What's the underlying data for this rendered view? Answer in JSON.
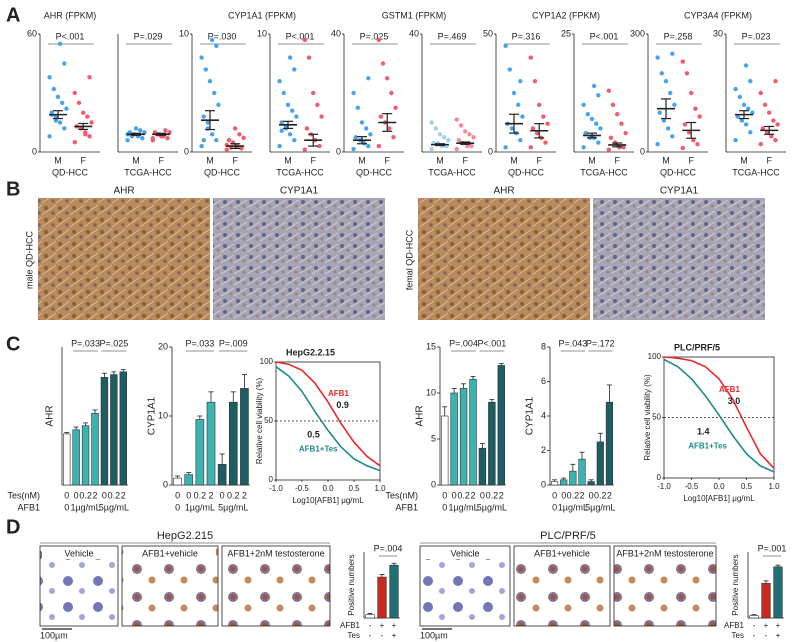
{
  "panels": [
    "A",
    "B",
    "C",
    "D"
  ],
  "panel_b": {
    "labels": [
      "AHR",
      "CYP1A1",
      "AHR",
      "CYP1A1"
    ],
    "sides": [
      "male QD-HCC",
      "femal QD-HCC"
    ]
  },
  "panel_d": [
    {
      "title": "HepG2.215",
      "images": [
        "Vehicle",
        "AFB1+vehicle",
        "AFB1+2nM testosterone"
      ],
      "scale": "100µm"
    },
    {
      "title": "PLC/PRF/5",
      "images": [
        "Vehicle",
        "AFB1+vehicle",
        "AFB1+2nM testosterone"
      ],
      "scale": "100µm"
    }
  ],
  "chart_data": [
    {
      "type": "dot",
      "title": "AHR (FPKM)",
      "group": "QD-HCC",
      "categories": [
        "M",
        "F"
      ],
      "pvalue": "P<.001",
      "ylim": [
        0,
        60
      ],
      "yticks": [
        0,
        60
      ],
      "colors": [
        "#4aa3f0",
        "#f25d6e"
      ],
      "points": [
        [
          8,
          12,
          15,
          18,
          20,
          22,
          25,
          28,
          32,
          38,
          45,
          55,
          16,
          19
        ],
        [
          5,
          8,
          10,
          12,
          13,
          15,
          18,
          20,
          25,
          30,
          38,
          9
        ]
      ],
      "mean": [
        19,
        13
      ],
      "sem": [
        2,
        1.5
      ]
    },
    {
      "type": "dot",
      "group": "TCGA-HCC",
      "categories": [
        "M",
        "F"
      ],
      "pvalue": "P=.029",
      "ylim": [
        0,
        60
      ],
      "colors": [
        "#4aa3f0",
        "#f25d6e"
      ],
      "points": [
        [
          6,
          7,
          8,
          9,
          10,
          10,
          11,
          12,
          8,
          9
        ],
        [
          6,
          7,
          8,
          9,
          10,
          10,
          11,
          8,
          9,
          7
        ]
      ],
      "mean": [
        9,
        9
      ],
      "sem": [
        0.5,
        0.5
      ]
    },
    {
      "type": "dot",
      "title": "CYP1A1 (FPKM)",
      "group": "QD-HCC",
      "categories": [
        "M",
        "F"
      ],
      "pvalue": "P=.030",
      "ylim": [
        0,
        10
      ],
      "yticks": [
        0,
        10
      ],
      "colors": [
        "#4aa3f0",
        "#f25d6e"
      ],
      "points": [
        [
          0.5,
          1,
          1.5,
          2,
          3,
          4,
          5,
          6,
          7,
          8,
          9,
          9.5,
          2.5,
          1
        ],
        [
          0.2,
          0.3,
          0.5,
          0.8,
          1,
          1.2,
          1.5,
          2,
          0.4,
          0.6
        ]
      ],
      "mean": [
        2.7,
        0.5
      ],
      "sem": [
        0.8,
        0.2
      ]
    },
    {
      "type": "dot",
      "group": "TCGA-HCC",
      "categories": [
        "M",
        "F"
      ],
      "pvalue": "P<.001",
      "ylim": [
        0,
        10
      ],
      "yticks": [
        10
      ],
      "colors": [
        "#4aa3f0",
        "#f25d6e"
      ],
      "points": [
        [
          0.5,
          1,
          1.5,
          2,
          2.5,
          3,
          3.5,
          4,
          5,
          6,
          7,
          8,
          2.2,
          1.8
        ],
        [
          0.2,
          0.5,
          1,
          1.5,
          2,
          3,
          4,
          5,
          8,
          9.5
        ]
      ],
      "mean": [
        2.3,
        1
      ],
      "sem": [
        0.3,
        0.5
      ]
    },
    {
      "type": "dot",
      "title": "GSTM1 (FPKM)",
      "group": "QD-HCC",
      "categories": [
        "M",
        "F"
      ],
      "pvalue": "P=.025",
      "ylim": [
        0,
        40
      ],
      "yticks": [
        0,
        40
      ],
      "colors": [
        "#4aa3f0",
        "#f25d6e"
      ],
      "points": [
        [
          1,
          2,
          3,
          4,
          5,
          6,
          8,
          10,
          15,
          20,
          25,
          3
        ],
        [
          2,
          5,
          8,
          10,
          12,
          15,
          20,
          25,
          30,
          38
        ]
      ],
      "mean": [
        4,
        10
      ],
      "sem": [
        1.2,
        3
      ]
    },
    {
      "type": "dot",
      "group": "TCGA-HCC",
      "categories": [
        "M",
        "F"
      ],
      "pvalue": "P=.469",
      "ylim": [
        0,
        40
      ],
      "yticks": [
        40
      ],
      "colors": [
        "#9fd0f5",
        "#f58a97"
      ],
      "points": [
        [
          1,
          2,
          2,
          3,
          3,
          4,
          5,
          6,
          8,
          10
        ],
        [
          1,
          2,
          2,
          3,
          4,
          5,
          6,
          7,
          9,
          11
        ]
      ],
      "mean": [
        2.5,
        3
      ],
      "sem": [
        0.3,
        0.4
      ]
    },
    {
      "type": "dot",
      "title": "CYP1A2 (FPKM)",
      "group": "QD-HCC",
      "categories": [
        "M",
        "F"
      ],
      "pvalue": "P=.316",
      "ylim": [
        0,
        50
      ],
      "yticks": [
        0,
        50
      ],
      "colors": [
        "#4aa3f0",
        "#f25d6e"
      ],
      "points": [
        [
          2,
          5,
          8,
          10,
          12,
          15,
          20,
          25,
          35,
          45,
          30
        ],
        [
          2,
          4,
          6,
          8,
          10,
          12,
          15,
          20,
          30,
          40
        ]
      ],
      "mean": [
        12,
        9
      ],
      "sem": [
        4,
        3
      ]
    },
    {
      "type": "dot",
      "group": "TCGA-HCC",
      "categories": [
        "M",
        "F"
      ],
      "pvalue": "P<.001",
      "ylim": [
        0,
        25
      ],
      "yticks": [
        25
      ],
      "colors": [
        "#4aa3f0",
        "#f25d6e"
      ],
      "points": [
        [
          1,
          2,
          3,
          3,
          4,
          5,
          6,
          7,
          8,
          10,
          12,
          14
        ],
        [
          0.5,
          1,
          1,
          2,
          3,
          4,
          6,
          8,
          10,
          13
        ]
      ],
      "mean": [
        3.5,
        1.5
      ],
      "sem": [
        0.5,
        0.4
      ]
    },
    {
      "type": "dot",
      "title": "CYP3A4 (FPKM)",
      "group": "QD-HCC",
      "categories": [
        "M",
        "F"
      ],
      "pvalue": "P=.258",
      "ylim": [
        0,
        300
      ],
      "yticks": [
        0,
        300
      ],
      "colors": [
        "#4aa3f0",
        "#f25d6e"
      ],
      "points": [
        [
          20,
          40,
          60,
          80,
          100,
          120,
          150,
          180,
          200,
          240,
          250
        ],
        [
          10,
          20,
          30,
          50,
          70,
          90,
          110,
          150,
          200,
          230
        ]
      ],
      "mean": [
        110,
        55
      ],
      "sem": [
        25,
        20
      ]
    },
    {
      "type": "dot",
      "group": "TCGA-HCC",
      "categories": [
        "M",
        "F"
      ],
      "pvalue": "P=.023",
      "ylim": [
        0,
        30
      ],
      "yticks": [
        30
      ],
      "colors": [
        "#4aa3f0",
        "#f25d6e"
      ],
      "points": [
        [
          3,
          5,
          7,
          8,
          9,
          10,
          11,
          12,
          14,
          16,
          18,
          22
        ],
        [
          2,
          3,
          4,
          5,
          6,
          7,
          8,
          10,
          12,
          15,
          18
        ]
      ],
      "mean": [
        9.5,
        5.5
      ],
      "sem": [
        1,
        1
      ]
    },
    {
      "type": "bar",
      "ylabel": "AHR",
      "ylim": [
        0,
        5
      ],
      "row_labels": [
        "Tes(nM)",
        "AFB1"
      ],
      "categories": [
        "0",
        "0",
        "0.2",
        "2",
        "0",
        "0.2",
        "2"
      ],
      "groups": [
        "0",
        "1µg/mL",
        "5µg/mL"
      ],
      "pvalues": [
        "P=.033",
        "P=.025"
      ],
      "values": [
        1.85,
        2,
        2.15,
        2.6,
        3.9,
        4,
        4.1
      ],
      "errors": [
        0.05,
        0.1,
        0.1,
        0.12,
        0.15,
        0.1,
        0.08
      ],
      "colors": [
        "#ffffff",
        "#3bb3b0",
        "#3bb3b0",
        "#3bb3b0",
        "#1d5e63",
        "#1d5e63",
        "#1d5e63"
      ]
    },
    {
      "type": "bar",
      "ylabel": "CYP1A1",
      "ylim": [
        0,
        20
      ],
      "yticks": [
        0,
        10,
        20
      ],
      "categories": [
        "0",
        "0",
        "0.2",
        "2",
        "0",
        "0.2",
        "2"
      ],
      "groups": [
        "0",
        "1µg/mL",
        "5µg/mL"
      ],
      "pvalues": [
        "P=.033",
        "P=.009"
      ],
      "values": [
        1,
        1.5,
        9.5,
        12,
        3,
        12,
        14
      ],
      "errors": [
        0.3,
        0.3,
        0.5,
        1.5,
        1.5,
        1.5,
        2
      ],
      "colors": [
        "#ffffff",
        "#3bb3b0",
        "#3bb3b0",
        "#3bb3b0",
        "#1d5e63",
        "#1d5e63",
        "#1d5e63"
      ]
    },
    {
      "type": "curve",
      "title": "HepG2.2.15",
      "ylabel": "Relative cell viability (%)",
      "xlabel": "Log10[AFB1] μg/mL",
      "xlim": [
        -1,
        1
      ],
      "xticks": [
        {
          "value": -1,
          "label": "-1.0"
        },
        -0.5,
        {
          "value": 0,
          "label": "0.0"
        },
        0.5,
        {
          "value": 1,
          "label": "1.0"
        }
      ],
      "ylim": [
        0,
        100
      ],
      "yticks": [
        0,
        50,
        100
      ],
      "hline": 50,
      "annotations": [
        "0.9",
        "0.5"
      ],
      "x": [
        -1,
        -0.75,
        -0.5,
        -0.25,
        0,
        0.25,
        0.5,
        0.75,
        1
      ],
      "series": [
        {
          "name": "AFB1",
          "color": "#e8282b",
          "values": [
            100,
            98,
            93,
            82,
            66,
            48,
            32,
            20,
            12
          ]
        },
        {
          "name": "AFB1+Tes",
          "color": "#1f8a8a",
          "values": [
            96,
            88,
            75,
            58,
            42,
            28,
            18,
            12,
            8
          ]
        }
      ]
    },
    {
      "type": "bar",
      "ylabel": "AHR",
      "ylim": [
        0,
        15
      ],
      "yticks": [
        0,
        5,
        10,
        15
      ],
      "row_labels": [
        "Tes(nM)",
        "AFB1"
      ],
      "categories": [
        "0",
        "0",
        "0.2",
        "2",
        "0",
        "0.2",
        "2"
      ],
      "groups": [
        "0",
        "1µg/mL",
        "5µg/mL"
      ],
      "pvalues": [
        "P=.004",
        "P<.001"
      ],
      "values": [
        7.5,
        10,
        10.5,
        11.5,
        4,
        9,
        13
      ],
      "errors": [
        1,
        0.5,
        0.5,
        0.3,
        0.5,
        0.3,
        0.2
      ],
      "colors": [
        "#ffffff",
        "#3bb3b0",
        "#3bb3b0",
        "#3bb3b0",
        "#1d5e63",
        "#1d5e63",
        "#1d5e63"
      ]
    },
    {
      "type": "bar",
      "ylabel": "CYP1A1",
      "ylim": [
        0,
        8
      ],
      "yticks": [
        0,
        2,
        4,
        6,
        8
      ],
      "categories": [
        "0",
        "0",
        "0.2",
        "2",
        "0",
        "0.2",
        "2"
      ],
      "groups": [
        "0",
        "1µg/mL",
        "5µg/mL"
      ],
      "pvalues": [
        "P=.043",
        "P=.172"
      ],
      "values": [
        0.2,
        0.3,
        0.8,
        1.5,
        0.2,
        2.5,
        4.8
      ],
      "errors": [
        0.1,
        0.1,
        0.4,
        0.4,
        0.1,
        0.5,
        1
      ],
      "colors": [
        "#ffffff",
        "#3bb3b0",
        "#3bb3b0",
        "#3bb3b0",
        "#1d5e63",
        "#1d5e63",
        "#1d5e63"
      ]
    },
    {
      "type": "curve",
      "title": "PLC/PRF/5",
      "ylabel": "Relative cell viability (%)",
      "xlabel": "Log10[AFB1] μg/mL",
      "xlim": [
        -1,
        1
      ],
      "xticks": [
        {
          "value": -1,
          "label": "-1.0"
        },
        -0.5,
        {
          "value": 0,
          "label": "0.0"
        },
        0.5,
        {
          "value": 1,
          "label": "1.0"
        }
      ],
      "ylim": [
        0,
        100
      ],
      "yticks": [
        0,
        50,
        100
      ],
      "hline": 50,
      "annotations": [
        "3.0",
        "1.4"
      ],
      "x": [
        -1,
        -0.75,
        -0.5,
        -0.25,
        0,
        0.25,
        0.5,
        0.75,
        1
      ],
      "series": [
        {
          "name": "AFB1",
          "color": "#e8282b",
          "values": [
            100,
            99,
            97,
            92,
            82,
            65,
            42,
            20,
            8
          ]
        },
        {
          "name": "AFB1+Tes",
          "color": "#1f8a8a",
          "values": [
            98,
            92,
            82,
            68,
            52,
            35,
            20,
            10,
            5
          ]
        }
      ]
    },
    {
      "type": "bar",
      "ylabel": "Positive numbers",
      "ylim": [
        0,
        10
      ],
      "pvalues": [
        "P=.004"
      ],
      "rows": [
        {
          "label": "AFB1",
          "signs": [
            "-",
            "+",
            "+"
          ]
        },
        {
          "label": "Tes",
          "signs": [
            "-",
            "-",
            "+"
          ]
        }
      ],
      "values": [
        0.5,
        6.2,
        8
      ],
      "errors": [
        0.2,
        0.4,
        0.3
      ],
      "colors": [
        "#ffffff",
        "#c62a1f",
        "#1f6f72"
      ]
    },
    {
      "type": "bar",
      "ylabel": "Positive numbers",
      "ylim": [
        0,
        8
      ],
      "pvalues": [
        "P=.001"
      ],
      "rows": [
        {
          "label": "AFB1",
          "signs": [
            "-",
            "+",
            "+"
          ]
        },
        {
          "label": "Tes",
          "signs": [
            "-",
            "-",
            "+"
          ]
        }
      ],
      "values": [
        0.3,
        4.2,
        6.2
      ],
      "errors": [
        0.1,
        0.3,
        0.2
      ],
      "colors": [
        "#ffffff",
        "#c62a1f",
        "#1f6f72"
      ]
    }
  ]
}
